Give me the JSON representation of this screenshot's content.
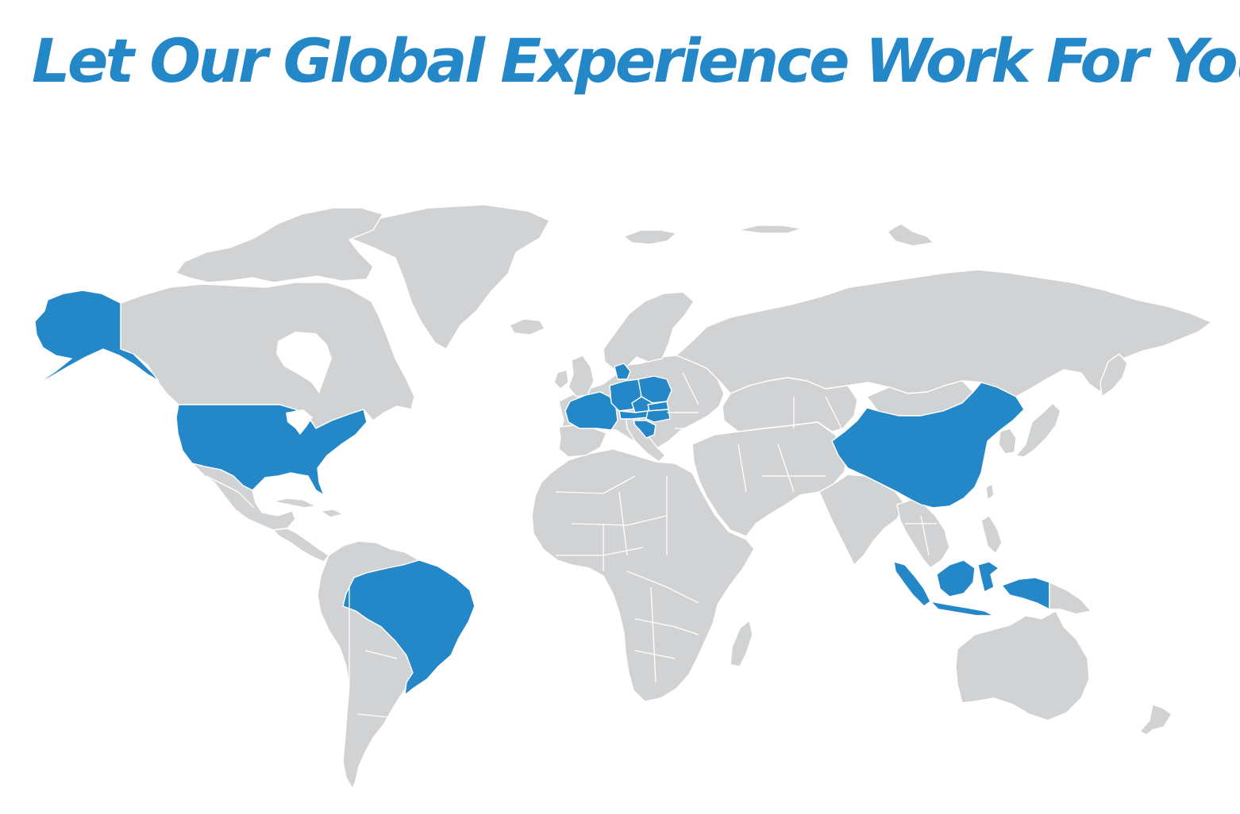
{
  "headline": "Let Our Global Experience Work For You",
  "colors": {
    "headline": "#2488c8",
    "highlighted_country": "#2488c8",
    "other_land": "#d1d2d4",
    "borders": "#ffffff",
    "background": "#ffffff"
  },
  "highlighted_regions": [
    "United States",
    "Brazil",
    "France",
    "Germany",
    "Denmark",
    "Poland",
    "Czech Republic",
    "Austria",
    "Slovakia",
    "Hungary",
    "Slovenia",
    "Croatia",
    "China",
    "Indonesia"
  ]
}
